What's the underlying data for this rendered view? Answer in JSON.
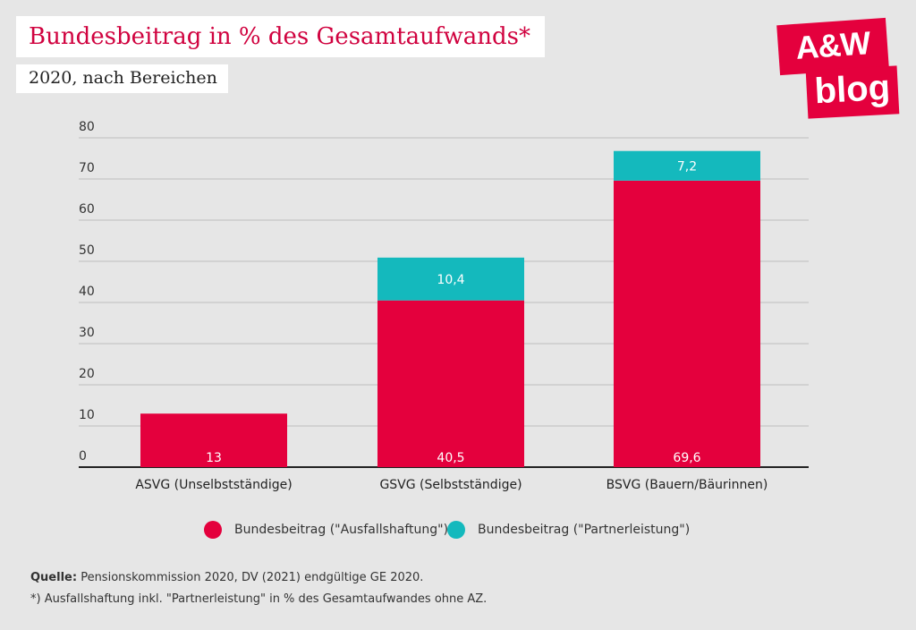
{
  "header": {
    "title": "Bundesbeitrag in % des Gesamtaufwands*",
    "subtitle": "2020, nach Bereichen"
  },
  "logo": {
    "line1": "A&W",
    "line2": "blog",
    "color": "#e4003d"
  },
  "colors": {
    "ausfallshaftung": "#e4003d",
    "partnerleistung": "#14b9bd",
    "background": "#e6e6e6"
  },
  "chart_data": {
    "type": "bar",
    "stacked": true,
    "categories": [
      "ASVG (Unselbstständige)",
      "GSVG (Selbstständige)",
      "BSVG (Bauern/Bäurinnen)"
    ],
    "series": [
      {
        "name": "Bundesbeitrag (\"Ausfallshaftung\")",
        "values": [
          13,
          40.5,
          69.6
        ],
        "labels": [
          "13",
          "40,5",
          "69,6"
        ]
      },
      {
        "name": "Bundesbeitrag (\"Partnerleistung\")",
        "values": [
          0,
          10.4,
          7.2
        ],
        "labels": [
          "",
          "10,4",
          "7,2"
        ]
      }
    ],
    "ylim": [
      0,
      80
    ],
    "yticks": [
      "0",
      "10",
      "20",
      "30",
      "40",
      "50",
      "60",
      "70",
      "80"
    ],
    "grid": true,
    "legend_position": "bottom"
  },
  "footer": {
    "source_label": "Quelle:",
    "source_text": " Pensionskommission 2020, DV (2021) endgültige GE 2020.",
    "note": "*) Ausfallshaftung inkl. \"Partnerleistung\" in % des Gesamtaufwandes ohne AZ."
  }
}
